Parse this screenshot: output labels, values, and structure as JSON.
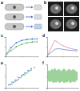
{
  "diagram_panels": [
    {
      "label": "a"
    },
    {
      "label": "b"
    }
  ],
  "chart_data": [
    {
      "type": "line",
      "title": "c",
      "x": [
        0,
        2,
        4,
        6,
        8,
        10,
        12
      ],
      "xlim": [
        0,
        12
      ],
      "ylim": [
        0,
        1
      ],
      "xticks": [
        0,
        6,
        12
      ],
      "yticks": [
        0,
        0.5,
        1
      ],
      "tick_labels": false,
      "series": [
        {
          "color": "#3a6fc4",
          "marker": "circle",
          "values": [
            0.05,
            0.45,
            0.7,
            0.82,
            0.88,
            0.9,
            0.91
          ]
        },
        {
          "color": "#5bb35b",
          "marker": "circle",
          "values": [
            0.05,
            0.3,
            0.5,
            0.62,
            0.7,
            0.74,
            0.76
          ]
        }
      ]
    },
    {
      "type": "line",
      "title": "d",
      "x": [
        0,
        1,
        2,
        3,
        4,
        5,
        6,
        7,
        8
      ],
      "xlim": [
        0,
        8
      ],
      "ylim": [
        0,
        6
      ],
      "xticks": [
        0,
        4,
        8
      ],
      "yticks": [
        0,
        3,
        6
      ],
      "tick_labels": false,
      "series": [
        {
          "color": "#e0708a",
          "values": [
            0.2,
            2.5,
            5,
            4.2,
            3.4,
            2.9,
            2.5,
            2.2,
            2.0
          ]
        },
        {
          "color": "#4a78c8",
          "values": [
            0.2,
            1.2,
            2.2,
            2.4,
            2.2,
            2.0,
            1.9,
            1.8,
            1.7
          ]
        }
      ]
    },
    {
      "type": "scatter",
      "title": "e",
      "xlim": [
        0,
        10
      ],
      "ylim": [
        0,
        10
      ],
      "xticks": [
        0,
        5,
        10
      ],
      "yticks": [
        0,
        5,
        10
      ],
      "tick_labels": false,
      "series": [
        {
          "color": "#4a78c8",
          "x": [
            1,
            1.5,
            2,
            2.5,
            3,
            3.5,
            4,
            4.5,
            5,
            5.5,
            6,
            6.5,
            7,
            7.5,
            8
          ],
          "values": [
            1.3,
            1.4,
            2.4,
            2.3,
            3.3,
            3.2,
            4.4,
            4.3,
            5.2,
            5.6,
            6.3,
            6.2,
            7.4,
            7.3,
            8.2
          ]
        },
        {
          "color": "#5bb35b",
          "x": [
            2,
            3,
            4,
            5,
            6,
            7,
            8,
            9
          ],
          "values": [
            1.6,
            2.7,
            3.6,
            4.7,
            5.5,
            6.8,
            7.6,
            8.7
          ]
        }
      ]
    },
    {
      "type": "area",
      "title": "f",
      "x": [
        0,
        1,
        2,
        3,
        4,
        5,
        6,
        7,
        8,
        9,
        10,
        11,
        12,
        13,
        14,
        15,
        16,
        17,
        18,
        19,
        20
      ],
      "xlim": [
        0,
        20
      ],
      "ylim": [
        -1,
        1
      ],
      "xticks": [
        0,
        10,
        20
      ],
      "yticks": [
        -1,
        0,
        1
      ],
      "tick_labels": false,
      "series": [
        {
          "color": "#7cc47a",
          "upper": [
            0.3,
            0.5,
            0.4,
            0.6,
            0.5,
            0.7,
            0.45,
            0.55,
            0.6,
            0.4,
            0.5,
            0.65,
            0.5,
            0.4,
            0.6,
            0.55,
            0.45,
            0.6,
            0.5,
            0.4,
            0.35
          ],
          "lower": [
            -0.3,
            -0.45,
            -0.5,
            -0.4,
            -0.6,
            -0.5,
            -0.55,
            -0.4,
            -0.6,
            -0.5,
            -0.45,
            -0.6,
            -0.5,
            -0.55,
            -0.4,
            -0.6,
            -0.5,
            -0.45,
            -0.55,
            -0.4,
            -0.3
          ]
        }
      ]
    }
  ]
}
